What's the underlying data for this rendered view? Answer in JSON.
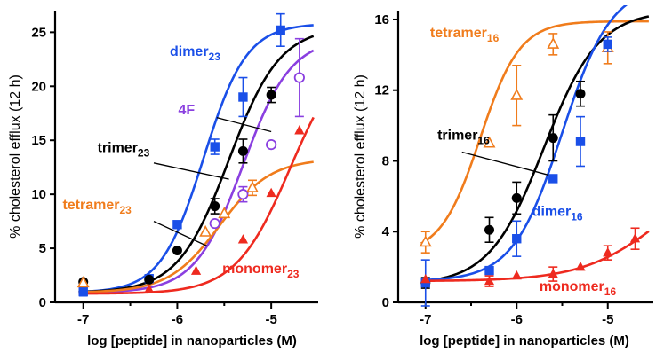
{
  "colors": {
    "dimer": "#1a4fe8",
    "trimer": "#000000",
    "fourF": "#8a3fe0",
    "tetramer": "#f07c1c",
    "monomer": "#ee2a1f"
  },
  "chart_data": [
    {
      "type": "line",
      "title": "",
      "xlabel": "log [peptide] in nanoparticles (M)",
      "ylabel": "% cholesterol efflux (12 h)",
      "xlim": [
        -7.3,
        -4.5
      ],
      "ylim": [
        0,
        27
      ],
      "xticks": [
        -7,
        -6,
        -5
      ],
      "xtick_labels": [
        "-7",
        "-6",
        "-5"
      ],
      "xminor": [
        -6.5,
        -5.5
      ],
      "yticks": [
        0,
        5,
        10,
        15,
        20,
        25
      ],
      "ytick_labels": [
        "0",
        "5",
        "10",
        "15",
        "20",
        "25"
      ],
      "series": [
        {
          "name": "dimer",
          "subscript": "23",
          "color_key": "dimer",
          "marker": "square-filled",
          "points": [
            {
              "x": -7.0,
              "y": 1.0,
              "err": 0.4
            },
            {
              "x": -6.3,
              "y": 2.2,
              "err": 0
            },
            {
              "x": -6.0,
              "y": 7.2,
              "err": 0
            },
            {
              "x": -5.6,
              "y": 14.4,
              "err": 0.7
            },
            {
              "x": -5.3,
              "y": 19.0,
              "err": 1.8
            },
            {
              "x": -4.9,
              "y": 25.2,
              "err": 1.5
            }
          ],
          "fit": {
            "bottom": 0.9,
            "top": 25.8,
            "logEC50": -5.72,
            "hill": 1.9
          }
        },
        {
          "name": "trimer",
          "subscript": "23",
          "color_key": "trimer",
          "marker": "circle-filled",
          "points": [
            {
              "x": -7.0,
              "y": 1.9,
              "err": 0
            },
            {
              "x": -6.3,
              "y": 2.1,
              "err": 0
            },
            {
              "x": -6.0,
              "y": 4.8,
              "err": 0
            },
            {
              "x": -5.6,
              "y": 8.9,
              "err": 0.7
            },
            {
              "x": -5.3,
              "y": 14.0,
              "err": 1.1
            },
            {
              "x": -5.0,
              "y": 19.2,
              "err": 0.7
            }
          ],
          "fit": {
            "bottom": 0.9,
            "top": 25.5,
            "logEC50": -5.45,
            "hill": 1.6
          }
        },
        {
          "name": "4F",
          "subscript": "",
          "color_key": "fourF",
          "marker": "circle-open",
          "points": [
            {
              "x": -5.6,
              "y": 7.3,
              "err": 0
            },
            {
              "x": -5.3,
              "y": 10.0,
              "err": 0.7
            },
            {
              "x": -5.0,
              "y": 14.6,
              "err": 0
            },
            {
              "x": -4.7,
              "y": 20.8,
              "err": 3.6
            }
          ],
          "fit": {
            "bottom": 0.9,
            "top": 24.5,
            "logEC50": -5.3,
            "hill": 1.7
          }
        },
        {
          "name": "tetramer",
          "subscript": "23",
          "color_key": "tetramer",
          "marker": "triangle-open",
          "points": [
            {
              "x": -7.0,
              "y": 1.8,
              "err": 0
            },
            {
              "x": -5.7,
              "y": 6.5,
              "err": 0
            },
            {
              "x": -5.5,
              "y": 8.2,
              "err": 0
            },
            {
              "x": -5.2,
              "y": 10.6,
              "err": 0.7
            }
          ],
          "fit": {
            "bottom": 0.9,
            "top": 13.3,
            "logEC50": -5.55,
            "hill": 1.6
          }
        },
        {
          "name": "monomer",
          "subscript": "23",
          "color_key": "monomer",
          "marker": "triangle-filled",
          "points": [
            {
              "x": -6.3,
              "y": 1.2,
              "err": 0
            },
            {
              "x": -5.8,
              "y": 2.9,
              "err": 0
            },
            {
              "x": -5.3,
              "y": 5.8,
              "err": 0
            },
            {
              "x": -5.0,
              "y": 10.1,
              "err": 0
            },
            {
              "x": -4.7,
              "y": 15.9,
              "err": 0
            }
          ],
          "fit": {
            "bottom": 0.8,
            "top": 24.0,
            "logEC50": -4.8,
            "hill": 1.5
          }
        }
      ],
      "annotations": [
        {
          "series": "dimer",
          "text": "dimer",
          "sub": "23",
          "color_key": "dimer",
          "at": [
            -6.08,
            22.8
          ]
        },
        {
          "series": "4F",
          "text": "4F",
          "sub": "",
          "color_key": "fourF",
          "at": [
            -5.99,
            17.4
          ],
          "line": [
            [
              -5.58,
              17.1
            ],
            [
              -5.0,
              15.8
            ]
          ]
        },
        {
          "series": "trimer",
          "text": "trimer",
          "sub": "23",
          "color_key": "trimer",
          "at": [
            -6.85,
            13.9
          ],
          "line": [
            [
              -6.25,
              12.9
            ],
            [
              -5.45,
              11.4
            ]
          ]
        },
        {
          "series": "tetramer",
          "text": "tetramer",
          "sub": "23",
          "color_key": "tetramer",
          "at": [
            -7.22,
            8.6
          ],
          "line": [
            [
              -6.25,
              7.5
            ],
            [
              -5.68,
              5.2
            ]
          ]
        },
        {
          "series": "monomer",
          "text": "monomer",
          "sub": "23",
          "color_key": "monomer",
          "at": [
            -5.52,
            2.7
          ]
        }
      ]
    },
    {
      "type": "line",
      "title": "",
      "xlabel": "log [peptide] in nanoparticles (M)",
      "ylabel": "% cholesterol efflux (12 h)",
      "xlim": [
        -7.3,
        -4.5
      ],
      "ylim": [
        0,
        16.5
      ],
      "xticks": [
        -7,
        -6,
        -5
      ],
      "xtick_labels": [
        "-7",
        "-6",
        "-5"
      ],
      "xminor": [
        -6.5,
        -5.5
      ],
      "yticks": [
        0,
        4,
        8,
        12,
        16
      ],
      "ytick_labels": [
        "0",
        "4",
        "8",
        "12",
        "16"
      ],
      "series": [
        {
          "name": "tetramer",
          "subscript": "16",
          "color_key": "tetramer",
          "marker": "triangle-open",
          "points": [
            {
              "x": -7.0,
              "y": 3.4,
              "err": 0.6
            },
            {
              "x": -6.3,
              "y": 9.0,
              "err": 0
            },
            {
              "x": -6.0,
              "y": 11.7,
              "err": 1.7
            },
            {
              "x": -5.6,
              "y": 14.6,
              "err": 0.6
            },
            {
              "x": -5.0,
              "y": 14.4,
              "err": 0.9
            }
          ],
          "fit": {
            "bottom": 2.7,
            "top": 15.9,
            "logEC50": -6.4,
            "hill": 2.0
          }
        },
        {
          "name": "trimer",
          "subscript": "16",
          "color_key": "trimer",
          "marker": "circle-filled",
          "points": [
            {
              "x": -7.0,
              "y": 1.1,
              "err": 0.3
            },
            {
              "x": -6.3,
              "y": 4.1,
              "err": 0.7
            },
            {
              "x": -6.0,
              "y": 5.9,
              "err": 0.9
            },
            {
              "x": -5.6,
              "y": 9.3,
              "err": 1.3
            },
            {
              "x": -5.3,
              "y": 11.8,
              "err": 0.7
            }
          ],
          "fit": {
            "bottom": 1.0,
            "top": 16.5,
            "logEC50": -5.7,
            "hill": 1.45
          }
        },
        {
          "name": "dimer",
          "subscript": "16",
          "color_key": "dimer",
          "marker": "square-filled",
          "points": [
            {
              "x": -7.0,
              "y": 1.1,
              "err": 1.3
            },
            {
              "x": -6.3,
              "y": 1.8,
              "err": 0
            },
            {
              "x": -6.0,
              "y": 3.6,
              "err": 1.0
            },
            {
              "x": -5.6,
              "y": 7.0,
              "err": 0
            },
            {
              "x": -5.3,
              "y": 9.1,
              "err": 1.4
            },
            {
              "x": -5.0,
              "y": 14.6,
              "err": 0.4
            }
          ],
          "fit": {
            "bottom": 1.2,
            "top": 18.0,
            "logEC50": -5.5,
            "hill": 1.6
          }
        },
        {
          "name": "monomer",
          "subscript": "16",
          "color_key": "monomer",
          "marker": "triangle-filled",
          "points": [
            {
              "x": -7.0,
              "y": 1.3,
              "err": 0
            },
            {
              "x": -6.3,
              "y": 1.2,
              "err": 0.3
            },
            {
              "x": -6.0,
              "y": 1.5,
              "err": 0
            },
            {
              "x": -5.6,
              "y": 1.6,
              "err": 0.4
            },
            {
              "x": -5.3,
              "y": 2.0,
              "err": 0
            },
            {
              "x": -5.0,
              "y": 2.8,
              "err": 0.4
            },
            {
              "x": -4.7,
              "y": 3.6,
              "err": 0.6
            }
          ],
          "fit": {
            "bottom": 1.2,
            "top": 8.0,
            "logEC50": -4.4,
            "hill": 1.0
          }
        }
      ],
      "annotations": [
        {
          "series": "tetramer",
          "text": "tetramer",
          "sub": "16",
          "color_key": "tetramer",
          "at": [
            -6.95,
            15.0
          ]
        },
        {
          "series": "trimer",
          "text": "trimer",
          "sub": "16",
          "color_key": "trimer",
          "at": [
            -6.87,
            9.2
          ],
          "line": [
            [
              -6.6,
              8.5
            ],
            [
              -5.65,
              7.2
            ]
          ]
        },
        {
          "series": "dimer",
          "text": "dimer",
          "sub": "16",
          "color_key": "dimer",
          "at": [
            -5.83,
            4.9
          ]
        },
        {
          "series": "monomer",
          "text": "monomer",
          "sub": "16",
          "color_key": "monomer",
          "at": [
            -5.75,
            0.65
          ]
        }
      ]
    }
  ]
}
